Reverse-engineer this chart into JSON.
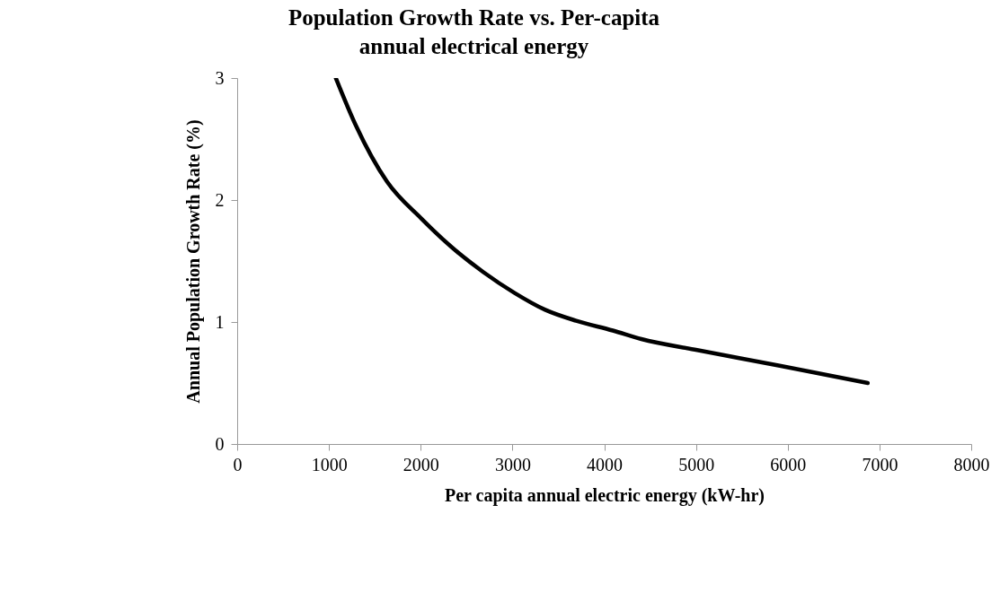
{
  "chart_data": {
    "type": "line",
    "title": "Population Growth Rate vs. Per-capita\nannual electrical  energy",
    "xlabel": "Per capita annual electric energy (kW-hr)",
    "ylabel": "Annual Population Growth Rate (%)",
    "series": [
      {
        "color": "#000000",
        "x": [
          1075,
          1294,
          1633,
          2004,
          2343,
          2681,
          3019,
          3357,
          3695,
          4094,
          4405,
          5013,
          5926,
          6872
        ],
        "values": [
          3.0,
          2.61,
          2.15,
          1.85,
          1.61,
          1.41,
          1.24,
          1.1,
          1.01,
          0.93,
          0.86,
          0.77,
          0.64,
          0.5
        ]
      }
    ],
    "xlim": [
      0,
      8000
    ],
    "xticks": [
      0,
      1000,
      2000,
      3000,
      4000,
      5000,
      6000,
      7000,
      8000
    ],
    "ylim": [
      0,
      3
    ],
    "yticks": [
      0,
      1,
      2,
      3
    ],
    "grid": false,
    "marker": "none",
    "line_style": "solid"
  }
}
